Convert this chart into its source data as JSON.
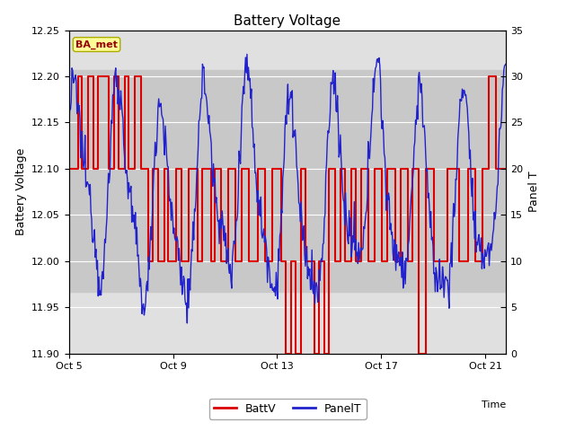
{
  "title": "Battery Voltage",
  "xlabel": "Time",
  "ylabel_left": "Battery Voltage",
  "ylabel_right": "Panel T",
  "ylim_left": [
    11.9,
    12.25
  ],
  "ylim_right": [
    0,
    35
  ],
  "background_color": "#ffffff",
  "plot_bg_color": "#e0e0e0",
  "inner_bg_color": "#c8c8c8",
  "inner_ymin": 11.967,
  "inner_ymax": 12.207,
  "annotation_text": "BA_met",
  "annotation_bg": "#ffff99",
  "annotation_text_color": "#990000",
  "annotation_border_color": "#aaaa00",
  "grid_color": "#ffffff",
  "xtick_labels": [
    "Oct 5",
    "Oct 9",
    "Oct 13",
    "Oct 17",
    "Oct 21"
  ],
  "xtick_positions": [
    0,
    4,
    8,
    12,
    16
  ],
  "legend_entries": [
    "BattV",
    "PanelT"
  ],
  "batt_color": "#dd0000",
  "panel_color": "#2222cc",
  "xlim": [
    0,
    16.8
  ]
}
